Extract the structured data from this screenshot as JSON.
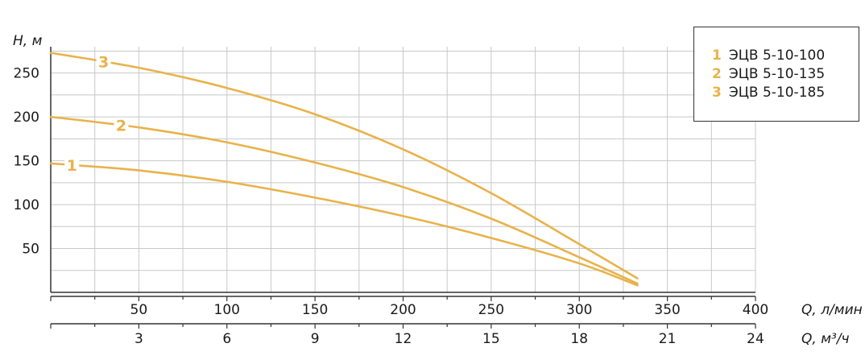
{
  "chart_data": {
    "type": "line",
    "ylabel": "H, м",
    "xlabel": "Q, л/мин",
    "x2label": "Q, м³/ч",
    "xlim": [
      0,
      400
    ],
    "ylim": [
      0,
      280
    ],
    "x_ticks": [
      "50",
      "100",
      "150",
      "200",
      "250",
      "300",
      "350",
      "400"
    ],
    "x2_ticks": [
      "3",
      "6",
      "9",
      "12",
      "15",
      "18",
      "21",
      "24"
    ],
    "y_ticks": [
      "50",
      "100",
      "150",
      "200",
      "250"
    ],
    "grid": true,
    "legend_position": "top-right",
    "colors": {
      "curve": "#e9b24a",
      "grid": "#c8c8c8",
      "axis": "#333333"
    },
    "series": [
      {
        "name": "ЭЦВ 5-10-100",
        "label": "1",
        "x": [
          0,
          50,
          100,
          150,
          200,
          250,
          300,
          333
        ],
        "y": [
          147,
          139,
          126,
          108,
          87,
          62,
          33,
          8
        ]
      },
      {
        "name": "ЭЦВ 5-10-135",
        "label": "2",
        "x": [
          0,
          50,
          100,
          150,
          200,
          250,
          300,
          333
        ],
        "y": [
          200,
          188,
          171,
          148,
          120,
          84,
          40,
          10
        ]
      },
      {
        "name": "ЭЦВ 5-10-185",
        "label": "3",
        "x": [
          0,
          50,
          100,
          150,
          200,
          250,
          300,
          333
        ],
        "y": [
          273,
          256,
          233,
          203,
          163,
          113,
          55,
          16
        ]
      }
    ]
  }
}
